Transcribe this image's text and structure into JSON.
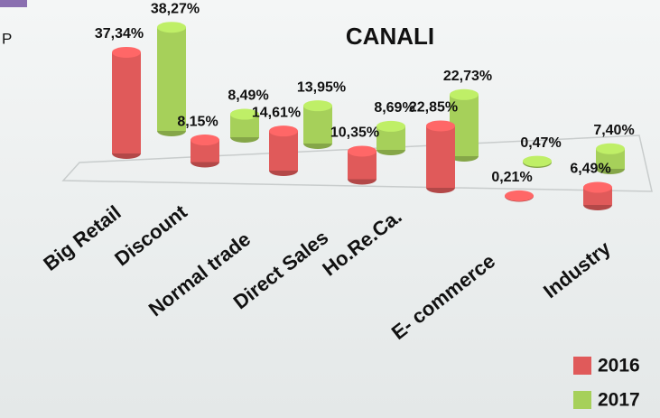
{
  "corner_text": "P",
  "chart_data": {
    "type": "cylinder-bar",
    "title": "CANALI",
    "categories": [
      "Big Retail",
      "Discount",
      "Normal trade",
      "Direct Sales",
      "Ho.Re.Ca.",
      "E- commerce",
      "Industry"
    ],
    "series": [
      {
        "name": "2016",
        "color": "#e05a5a",
        "values": [
          37.34,
          8.15,
          14.61,
          10.35,
          22.85,
          0.21,
          6.49
        ],
        "value_labels": [
          "37,34%",
          "8,15%",
          "14,61%",
          "10,35%",
          "22,85%",
          "0,21%",
          "6,49%"
        ]
      },
      {
        "name": "2017",
        "color": "#a6d05a",
        "values": [
          38.27,
          8.49,
          13.95,
          8.69,
          22.73,
          0.47,
          7.4
        ],
        "value_labels": [
          "38,27%",
          "8,49%",
          "13,95%",
          "8,69%",
          "22,73%",
          "0,47%",
          "7,40%"
        ]
      }
    ],
    "legend": "bottom-right"
  }
}
